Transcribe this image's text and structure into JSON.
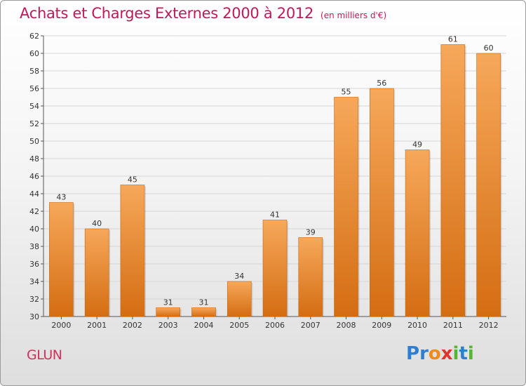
{
  "header": {
    "title": "Achats et Charges Externes 2000 à 2012",
    "unit": "(en milliers d'€)"
  },
  "footer": {
    "commune": "GLUN",
    "logo": {
      "text": "Proxiti",
      "letter_colors": [
        "#2e7fd1",
        "#2e7fd1",
        "#f08a1a",
        "#e0342c",
        "#57b52f",
        "#2e7fd1",
        "#57b52f"
      ]
    }
  },
  "colors": {
    "title": "#c0185a",
    "bar_light": "#f6a85a",
    "bar_dark": "#d46d12",
    "grid": "#d6d6d6"
  },
  "chart_data": {
    "type": "bar",
    "title": "Achats et Charges Externes 2000 à 2012",
    "subtitle": "(en milliers d'€)",
    "categories": [
      "2000",
      "2001",
      "2002",
      "2003",
      "2004",
      "2005",
      "2006",
      "2007",
      "2008",
      "2009",
      "2010",
      "2011",
      "2012"
    ],
    "values": [
      43,
      40,
      45,
      31,
      31,
      34,
      41,
      39,
      55,
      56,
      49,
      61,
      60
    ],
    "ylim": [
      30,
      62
    ],
    "yticks": [
      30,
      32,
      34,
      36,
      38,
      40,
      42,
      44,
      46,
      48,
      50,
      52,
      54,
      56,
      58,
      60,
      62
    ],
    "grid": true,
    "xlabel": "",
    "ylabel": ""
  }
}
